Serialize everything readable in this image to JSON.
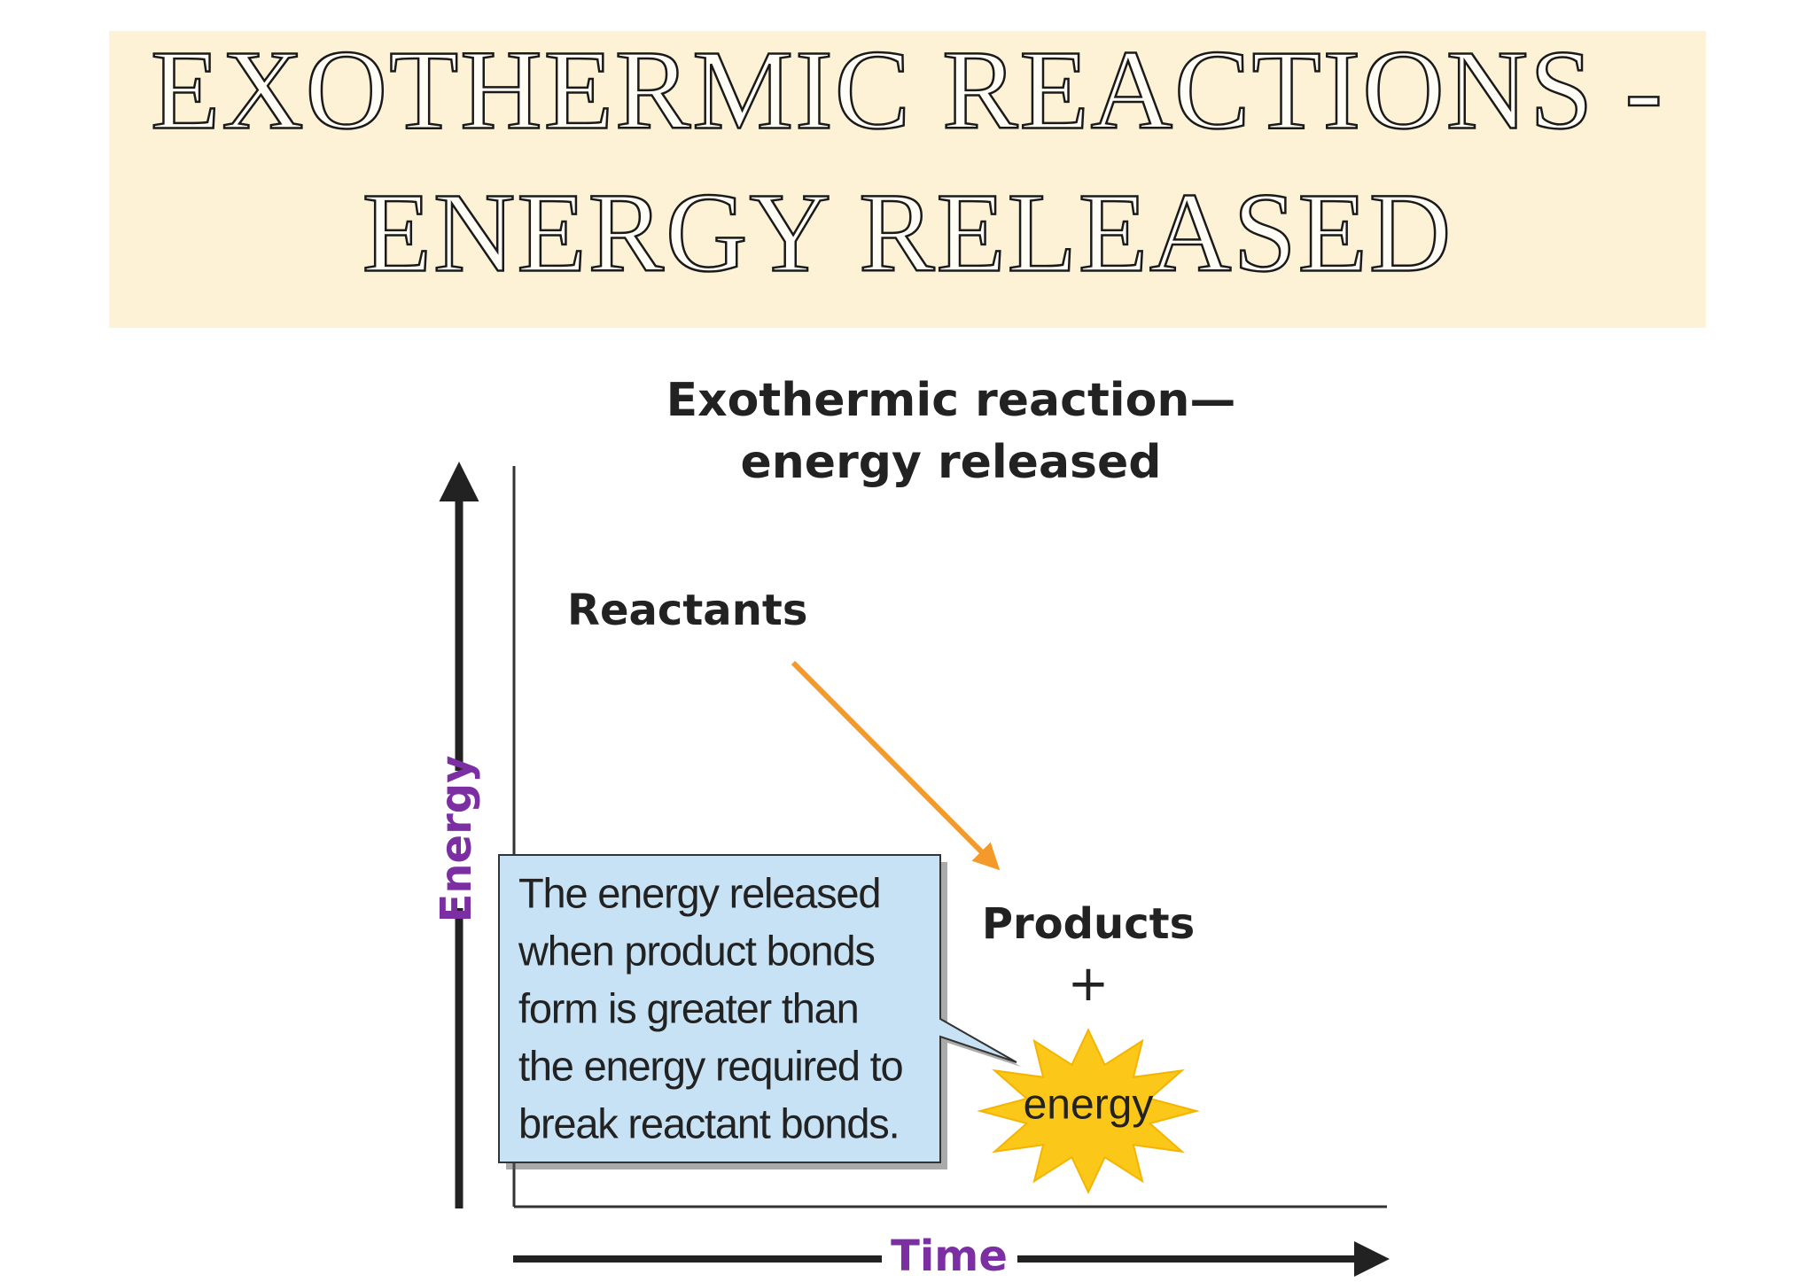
{
  "header": {
    "title_lines": [
      "EXOTHERMIC REACTIONS -",
      "ENERGY RELEASED"
    ]
  },
  "diagram": {
    "title_lines": [
      "Exothermic reaction—",
      "energy released"
    ],
    "reactants": "Reactants",
    "products": "Products",
    "plus": "+",
    "energy_burst": "energy",
    "callout_lines": [
      "The energy released",
      "when product bonds",
      "form is greater than",
      "the energy required to",
      "break reactant bonds."
    ],
    "y_axis_label": "Energy",
    "x_axis_label": "Time"
  }
}
